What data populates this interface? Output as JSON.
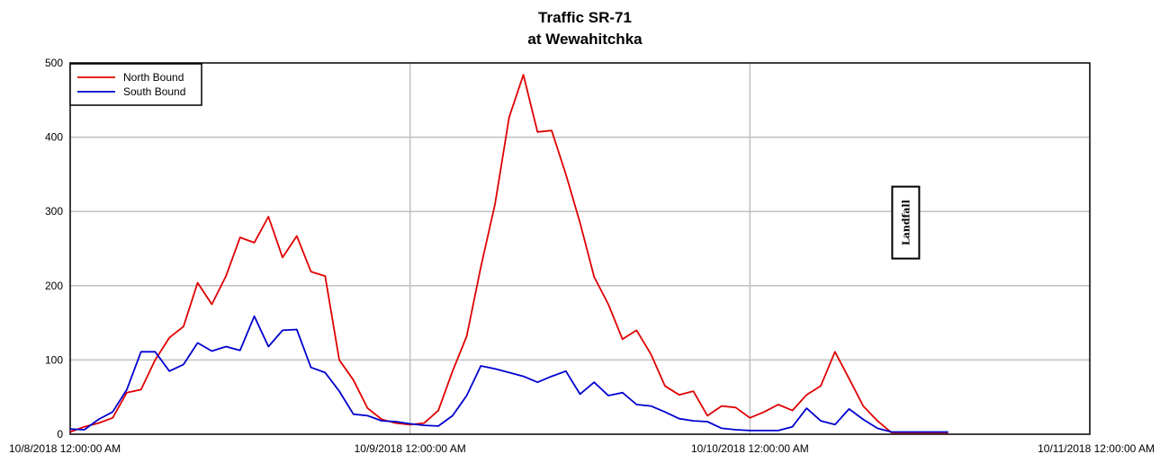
{
  "chart_data": {
    "type": "line",
    "title": "Traffic SR-71",
    "subtitle": "at Wewahitchka",
    "xlabel": "",
    "ylabel": "",
    "x_ticks": [
      "10/8/2018 12:00:00 AM",
      "10/9/2018 12:00:00 AM",
      "10/10/2018 12:00:00 AM",
      "10/11/2018 12:00:00 AM"
    ],
    "xlim_hours": [
      0,
      72
    ],
    "y_ticks": [
      0,
      100,
      200,
      300,
      400,
      500
    ],
    "ylim": [
      0,
      500
    ],
    "grid": true,
    "legend": "top-left",
    "colors": {
      "north": "#e00000",
      "south": "#0000d0"
    },
    "annotation": {
      "text": "Landfall",
      "hour": 59,
      "y": 285
    },
    "series": [
      {
        "name": "North Bound",
        "x_hours": [
          0,
          1,
          2,
          3,
          4,
          5,
          6,
          7,
          8,
          9,
          10,
          11,
          12,
          13,
          14,
          15,
          16,
          17,
          18,
          19,
          20,
          21,
          22,
          23,
          24,
          25,
          26,
          27,
          28,
          29,
          30,
          31,
          32,
          33,
          34,
          35,
          36,
          37,
          38,
          39,
          40,
          41,
          42,
          43,
          44,
          45,
          46,
          47,
          48,
          49,
          50,
          51,
          52,
          53,
          54,
          55,
          56,
          57,
          58,
          59,
          60,
          61,
          62
        ],
        "values": [
          3,
          10,
          15,
          22,
          56,
          60,
          100,
          130,
          145,
          204,
          175,
          213,
          265,
          258,
          293,
          238,
          267,
          219,
          213,
          100,
          73,
          35,
          20,
          15,
          13,
          15,
          32,
          85,
          132,
          225,
          310,
          427,
          484,
          407,
          409,
          350,
          285,
          212,
          175,
          128,
          140,
          108,
          65,
          53,
          58,
          25,
          38,
          36,
          22,
          30,
          40,
          32,
          53,
          65,
          111,
          75,
          38,
          18,
          2,
          2,
          2,
          2,
          2
        ]
      },
      {
        "name": "South Bound",
        "x_hours": [
          0,
          1,
          2,
          3,
          4,
          5,
          6,
          7,
          8,
          9,
          10,
          11,
          12,
          13,
          14,
          15,
          16,
          17,
          18,
          19,
          20,
          21,
          22,
          23,
          24,
          25,
          26,
          27,
          28,
          29,
          30,
          31,
          32,
          33,
          34,
          35,
          36,
          37,
          38,
          39,
          40,
          41,
          42,
          43,
          44,
          45,
          46,
          47,
          48,
          49,
          50,
          51,
          52,
          53,
          54,
          55,
          56,
          57,
          58,
          59,
          60,
          61,
          62
        ],
        "values": [
          7,
          6,
          20,
          30,
          60,
          111,
          111,
          85,
          94,
          123,
          112,
          118,
          113,
          159,
          118,
          140,
          141,
          90,
          83,
          58,
          27,
          25,
          18,
          17,
          14,
          12,
          11,
          25,
          52,
          92,
          88,
          83,
          78,
          70,
          78,
          85,
          54,
          70,
          52,
          56,
          40,
          38,
          30,
          21,
          18,
          17,
          8,
          6,
          5,
          5,
          5,
          10,
          35,
          18,
          13,
          34,
          20,
          8,
          3,
          3,
          3,
          3,
          3
        ]
      }
    ]
  }
}
